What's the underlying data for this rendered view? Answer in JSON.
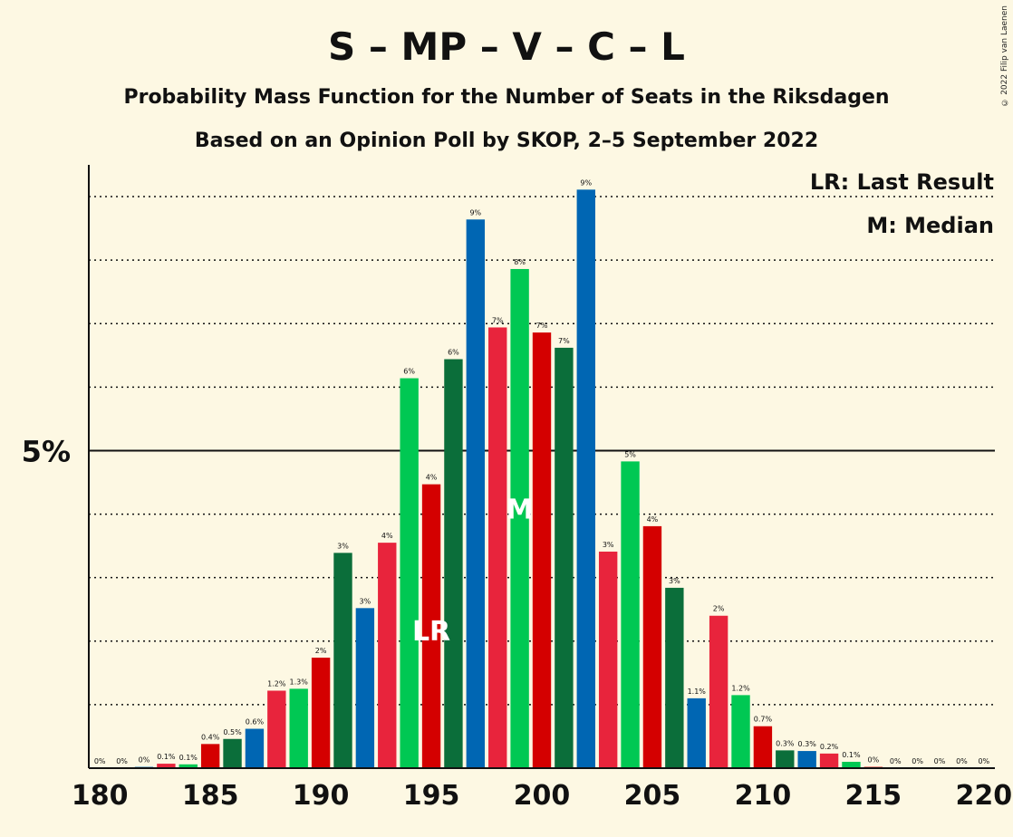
{
  "chart_data": {
    "type": "bar",
    "title": "S – MP – V – C – L",
    "subtitle": "Probability Mass Function for the Number of Seats in the Riksdagen",
    "subtitle2": "Based on an Opinion Poll by SKOP, 2–5 September 2022",
    "copyright": "© 2022 Filip van Laenen",
    "legend": {
      "lr": "LR: Last Result",
      "m": "M: Median",
      "position": "top-right"
    },
    "y_tick_label": "5%",
    "y_tick_value": 5,
    "ylim": [
      0,
      9.5
    ],
    "x_ticks": [
      180,
      185,
      190,
      195,
      200,
      205,
      210,
      215,
      220
    ],
    "last_result_seat": 195,
    "median_seat": 199,
    "lr_marker": "LR",
    "median_marker": "M",
    "colors": [
      "#d40000",
      "#0b6e3a",
      "#0066b3",
      "#e8243c",
      "#00c853"
    ],
    "seats": [
      180,
      181,
      182,
      183,
      184,
      185,
      186,
      187,
      188,
      189,
      190,
      191,
      192,
      193,
      194,
      195,
      196,
      197,
      198,
      199,
      200,
      201,
      202,
      203,
      204,
      205,
      206,
      207,
      208,
      209,
      210,
      211,
      212,
      213,
      214,
      215,
      216,
      217,
      218,
      219,
      220
    ],
    "values": [
      0,
      0,
      0.02,
      0.07,
      0.06,
      0.38,
      0.46,
      0.62,
      1.22,
      1.25,
      1.74,
      3.39,
      2.52,
      3.55,
      6.14,
      4.47,
      6.44,
      8.64,
      6.94,
      7.86,
      6.86,
      6.62,
      9.11,
      3.41,
      4.83,
      3.81,
      2.84,
      1.1,
      2.4,
      1.15,
      0.66,
      0.28,
      0.27,
      0.23,
      0.1,
      0.02,
      0,
      0,
      0,
      0,
      0
    ],
    "labels": [
      "0%",
      "0%",
      "0%",
      "0.1%",
      "0.1%",
      "0.4%",
      "0.5%",
      "0.6%",
      "1.2%",
      "1.3%",
      "2%",
      "3%",
      "3%",
      "4%",
      "6%",
      "4%",
      "6%",
      "9%",
      "7%",
      "8%",
      "7%",
      "7%",
      "9%",
      "3%",
      "5%",
      "4%",
      "3%",
      "1.1%",
      "2%",
      "1.2%",
      "0.7%",
      "0.3%",
      "0.3%",
      "0.2%",
      "0.1%",
      "0%",
      "0%",
      "0%",
      "0%",
      "0%",
      "0%"
    ]
  }
}
